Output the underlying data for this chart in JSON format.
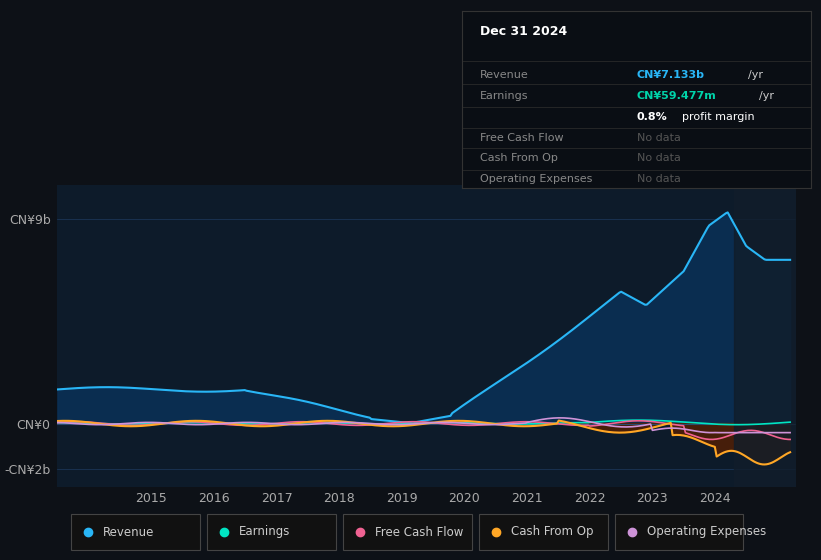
{
  "bg_color": "#0d1117",
  "chart_bg": "#0d1b2a",
  "title_date": "Dec 31 2024",
  "ytick_labels": [
    "CN¥9b",
    "CN¥0",
    "-CN¥2b"
  ],
  "ytick_vals": [
    9000000000,
    0,
    -2000000000
  ],
  "xticks": [
    2015,
    2016,
    2017,
    2018,
    2019,
    2020,
    2021,
    2022,
    2023,
    2024
  ],
  "xmin": 2013.5,
  "xmax": 2025.3,
  "ymin": -2800000000.0,
  "ymax": 10500000000.0,
  "revenue_color": "#29b6f6",
  "revenue_fill": "#0a3055",
  "earnings_color": "#00e5c3",
  "fcf_color": "#f06292",
  "cashfromop_color": "#ffa726",
  "opex_color": "#ce93d8",
  "legend_items": [
    {
      "label": "Revenue",
      "color": "#29b6f6"
    },
    {
      "label": "Earnings",
      "color": "#00e5c3"
    },
    {
      "label": "Free Cash Flow",
      "color": "#f06292"
    },
    {
      "label": "Cash From Op",
      "color": "#ffa726"
    },
    {
      "label": "Operating Expenses",
      "color": "#ce93d8"
    }
  ],
  "grid_color": "#1e3a5f",
  "zero_line_color": "#2a4a6f",
  "panel_bg": "#0a0e14",
  "panel_border": "#333333"
}
